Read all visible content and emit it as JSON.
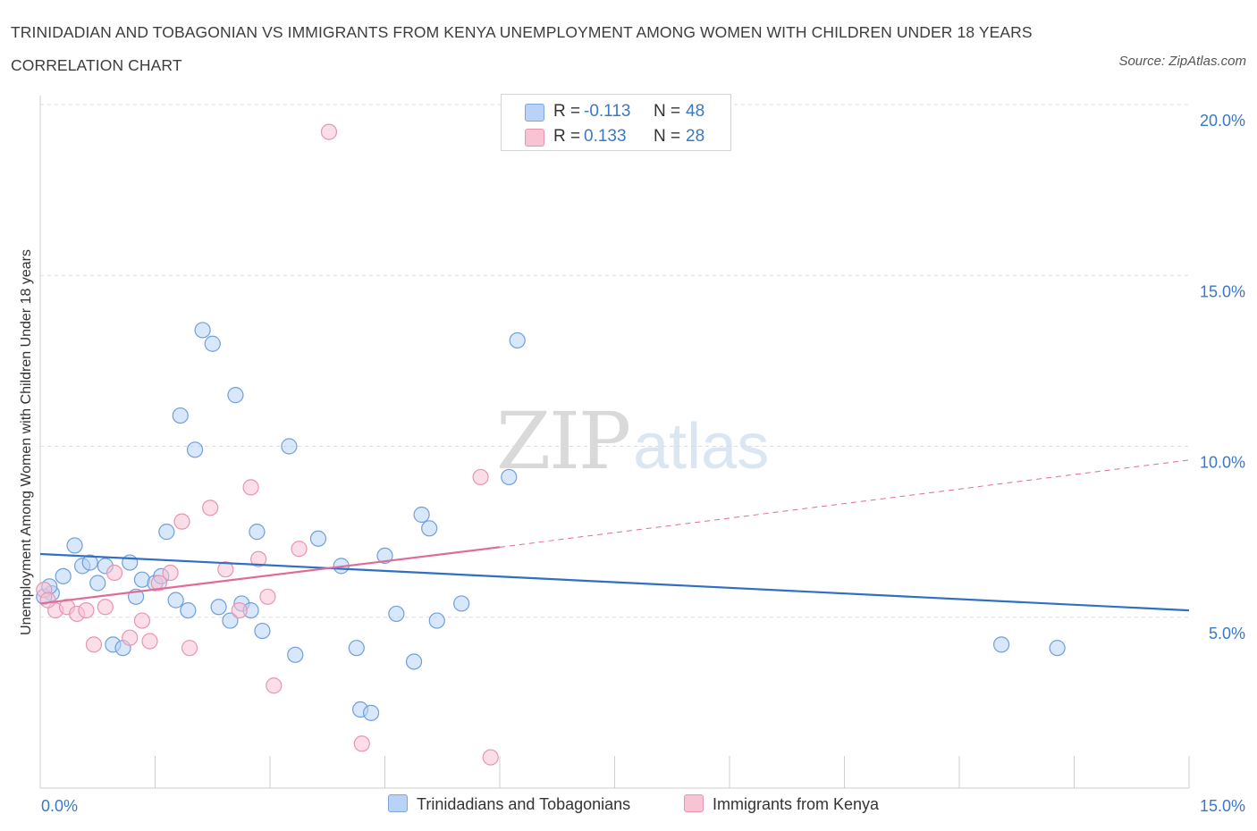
{
  "title": "TRINIDADIAN AND TOBAGONIAN VS IMMIGRANTS FROM KENYA UNEMPLOYMENT AMONG WOMEN WITH CHILDREN UNDER 18 YEARS CORRELATION CHART",
  "source": "Source: ZipAtlas.com",
  "watermark": {
    "zip": "ZIP",
    "atlas": "atlas"
  },
  "legend": {
    "r_label": "R =",
    "n_label": "N =",
    "rows": [
      {
        "r": "-0.113",
        "n": "48",
        "color": "#b8d3f5",
        "border": "#7ba7de"
      },
      {
        "r": "0.133",
        "n": "28",
        "color": "#f8c3d3",
        "border": "#e995b0"
      }
    ]
  },
  "bottom_legend": [
    {
      "label": "Trinidadians and Tobagonians",
      "color": "#b8d3f5",
      "border": "#7ba7de"
    },
    {
      "label": "Immigrants from Kenya",
      "color": "#f8c3d3",
      "border": "#e995b0"
    }
  ],
  "chart_data": {
    "type": "scatter",
    "title": "TRINIDADIAN AND TOBAGONIAN VS IMMIGRANTS FROM KENYA UNEMPLOYMENT AMONG WOMEN WITH CHILDREN UNDER 18 YEARS CORRELATION CHART",
    "xlabel": "",
    "ylabel": "Unemployment Among Women with Children Under 18 years",
    "xlim": [
      0,
      15
    ],
    "ylim": [
      0,
      20
    ],
    "x_tick_labels": [
      "0.0%",
      "15.0%"
    ],
    "y_ticks": [
      5,
      10,
      15,
      20
    ],
    "y_tick_labels": [
      "5.0%",
      "10.0%",
      "15.0%",
      "20.0%"
    ],
    "grid": "horizontal dashed",
    "legend_position": "top-center",
    "series": [
      {
        "name": "Trinidadians and Tobagonians",
        "color": "#6f9fdb",
        "fill": "#b8d3f5",
        "points": [
          [
            0.15,
            5.7
          ],
          [
            0.3,
            6.2
          ],
          [
            0.45,
            7.1
          ],
          [
            0.55,
            6.5
          ],
          [
            0.65,
            6.6
          ],
          [
            0.75,
            6.0
          ],
          [
            0.85,
            6.5
          ],
          [
            0.95,
            4.2
          ],
          [
            1.08,
            4.1
          ],
          [
            1.17,
            6.6
          ],
          [
            1.25,
            5.6
          ],
          [
            1.33,
            6.1
          ],
          [
            1.5,
            6.0
          ],
          [
            1.58,
            6.2
          ],
          [
            1.65,
            7.5
          ],
          [
            1.77,
            5.5
          ],
          [
            1.83,
            10.9
          ],
          [
            1.93,
            5.2
          ],
          [
            2.02,
            9.9
          ],
          [
            2.12,
            13.4
          ],
          [
            2.25,
            13.0
          ],
          [
            2.33,
            5.3
          ],
          [
            2.48,
            4.9
          ],
          [
            2.55,
            11.5
          ],
          [
            2.63,
            5.4
          ],
          [
            2.75,
            5.2
          ],
          [
            2.83,
            7.5
          ],
          [
            2.9,
            4.6
          ],
          [
            3.25,
            10.0
          ],
          [
            3.33,
            3.9
          ],
          [
            3.63,
            7.3
          ],
          [
            3.93,
            6.5
          ],
          [
            4.13,
            4.1
          ],
          [
            4.18,
            2.3
          ],
          [
            4.32,
            2.2
          ],
          [
            4.5,
            6.8
          ],
          [
            4.65,
            5.1
          ],
          [
            4.88,
            3.7
          ],
          [
            4.98,
            8.0
          ],
          [
            5.08,
            7.6
          ],
          [
            5.18,
            4.9
          ],
          [
            5.5,
            5.4
          ],
          [
            6.12,
            9.1
          ],
          [
            6.23,
            13.1
          ],
          [
            12.55,
            4.2
          ],
          [
            13.28,
            4.1
          ],
          [
            0.05,
            5.6
          ],
          [
            0.12,
            5.9
          ]
        ]
      },
      {
        "name": "Immigrants from Kenya",
        "color": "#e995b0",
        "fill": "#f8c3d3",
        "points": [
          [
            0.05,
            5.8
          ],
          [
            0.2,
            5.2
          ],
          [
            0.35,
            5.3
          ],
          [
            0.48,
            5.1
          ],
          [
            0.6,
            5.2
          ],
          [
            0.7,
            4.2
          ],
          [
            0.85,
            5.3
          ],
          [
            0.97,
            6.3
          ],
          [
            1.17,
            4.4
          ],
          [
            1.33,
            4.9
          ],
          [
            1.43,
            4.3
          ],
          [
            1.55,
            6.0
          ],
          [
            1.7,
            6.3
          ],
          [
            1.85,
            7.8
          ],
          [
            1.95,
            4.1
          ],
          [
            2.22,
            8.2
          ],
          [
            2.42,
            6.4
          ],
          [
            2.6,
            5.2
          ],
          [
            2.75,
            8.8
          ],
          [
            2.85,
            6.7
          ],
          [
            2.97,
            5.6
          ],
          [
            3.05,
            3.0
          ],
          [
            3.38,
            7.0
          ],
          [
            3.77,
            19.2
          ],
          [
            4.2,
            1.3
          ],
          [
            5.75,
            9.1
          ],
          [
            5.88,
            0.9
          ],
          [
            0.1,
            5.5
          ]
        ]
      }
    ],
    "trend_lines": [
      {
        "series": "Trinidadians and Tobagonians",
        "color": "#2f6fc4",
        "x": [
          0,
          15
        ],
        "y": [
          6.85,
          5.2
        ],
        "style": "solid"
      },
      {
        "series": "Immigrants from Kenya",
        "color": "#e06b97",
        "x": [
          0,
          6
        ],
        "y": [
          5.4,
          7.05
        ],
        "style": "solid"
      },
      {
        "series": "Immigrants from Kenya",
        "color": "#e06b97",
        "x": [
          6,
          15
        ],
        "y": [
          7.05,
          9.6
        ],
        "style": "dashed"
      }
    ]
  }
}
